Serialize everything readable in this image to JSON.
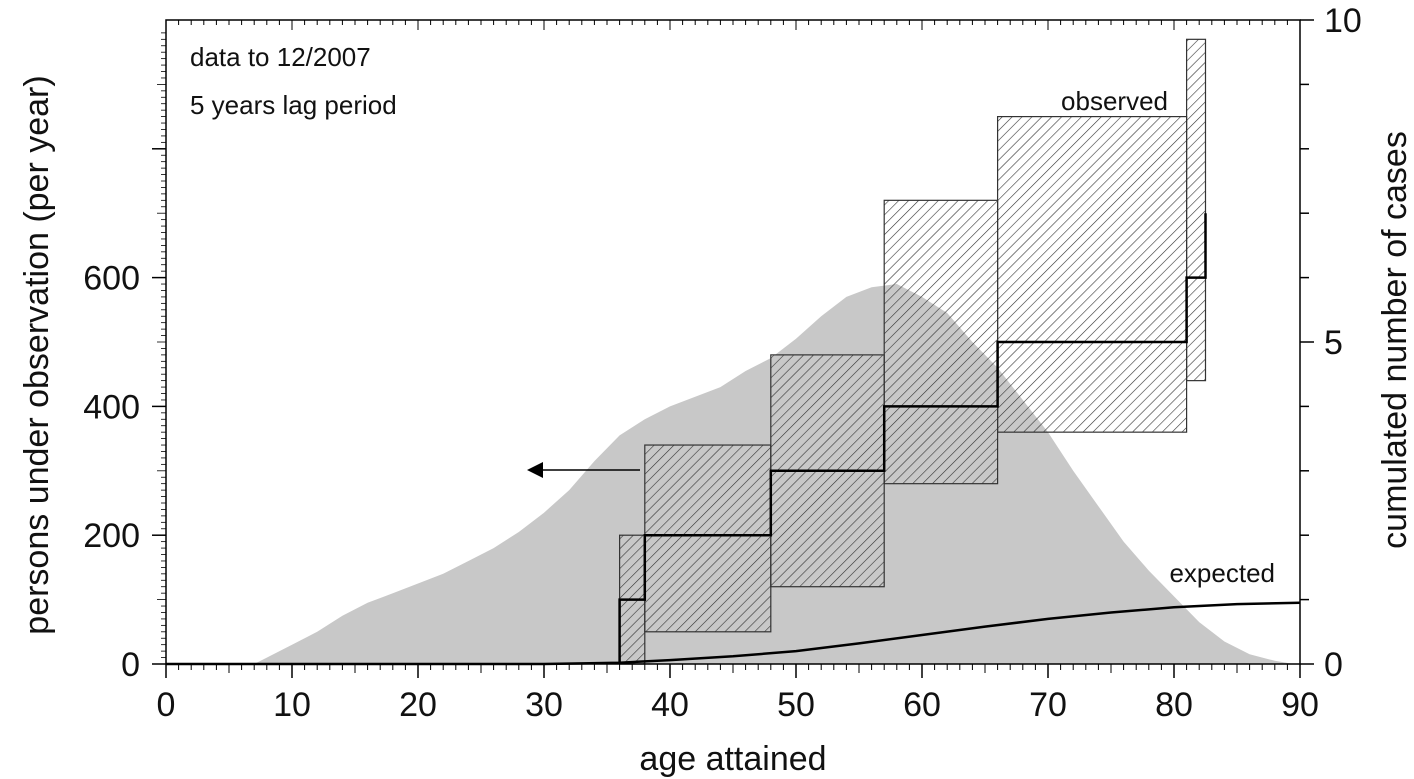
{
  "chart_data": {
    "type": "area",
    "xlabel": "age attained",
    "ylabel_left": "persons under observation (per year)",
    "ylabel_right": "cumulated number of cases",
    "xlim": [
      0,
      90
    ],
    "ylim_left": [
      0,
      1000
    ],
    "ylim_right": [
      0,
      10
    ],
    "x_ticks": [
      0,
      10,
      20,
      30,
      40,
      50,
      60,
      70,
      80,
      90
    ],
    "y_left_ticks": [
      0,
      200,
      400,
      600
    ],
    "y_right_ticks": [
      0,
      5,
      10
    ],
    "grid": false,
    "annotations": [
      "data to 12/2007",
      "5 years lag period"
    ],
    "colors": {
      "persons_area": "#c8c8c8",
      "lines": "#000000",
      "hatch_box": "#333333"
    },
    "persons_under_observation": {
      "axis": "left",
      "x": [
        0,
        5,
        7,
        8,
        10,
        12,
        14,
        16,
        18,
        20,
        22,
        24,
        26,
        28,
        30,
        32,
        34,
        36,
        38,
        40,
        42,
        44,
        46,
        48,
        50,
        52,
        54,
        56,
        58,
        60,
        62,
        64,
        66,
        68,
        70,
        72,
        74,
        76,
        78,
        80,
        82,
        84,
        86,
        88,
        89.5
      ],
      "y": [
        0,
        0,
        0,
        10,
        30,
        50,
        75,
        95,
        110,
        125,
        140,
        160,
        180,
        205,
        235,
        270,
        315,
        355,
        380,
        400,
        415,
        430,
        455,
        475,
        505,
        540,
        570,
        585,
        590,
        570,
        545,
        500,
        460,
        410,
        360,
        300,
        245,
        190,
        145,
        105,
        65,
        35,
        15,
        5,
        0
      ]
    },
    "series": [
      {
        "name": "observed",
        "axis": "right",
        "step_x": [
          36,
          38,
          48,
          57,
          66,
          81,
          82.5
        ],
        "values": [
          1,
          2,
          3,
          4,
          5,
          6,
          7
        ],
        "ci_lower": [
          0,
          0.5,
          1.2,
          2.8,
          3.6,
          4.4,
          4.4
        ],
        "ci_upper": [
          2,
          3.4,
          4.8,
          7.2,
          8.5,
          9.7,
          9.7
        ]
      },
      {
        "name": "expected",
        "axis": "right",
        "x": [
          0,
          30,
          36,
          40,
          45,
          50,
          55,
          60,
          65,
          70,
          75,
          80,
          85,
          90
        ],
        "values": [
          0,
          0,
          0.02,
          0.06,
          0.12,
          0.2,
          0.32,
          0.45,
          0.58,
          0.7,
          0.8,
          0.88,
          0.93,
          0.95
        ]
      }
    ]
  }
}
